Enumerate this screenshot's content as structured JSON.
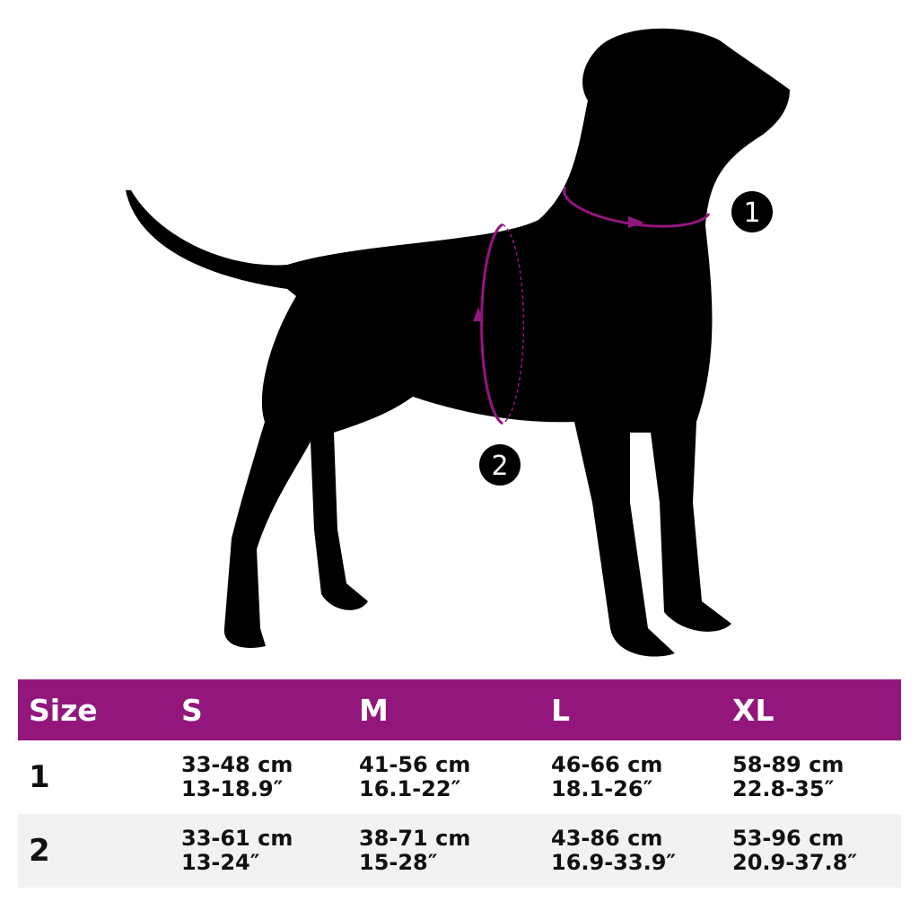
{
  "colors": {
    "accent": "#93167d",
    "silhouette": "#000000",
    "row_alt": "#f2f2f2"
  },
  "diagram": {
    "markers": [
      {
        "label": "1",
        "measures": "neck"
      },
      {
        "label": "2",
        "measures": "chest"
      }
    ]
  },
  "table": {
    "headers": [
      "Size",
      "S",
      "M",
      "L",
      "XL"
    ],
    "rows": [
      {
        "label": "1",
        "cells": [
          {
            "cm": "33-48 cm",
            "in": "13-18.9″"
          },
          {
            "cm": "41-56 cm",
            "in": "16.1-22″"
          },
          {
            "cm": "46-66 cm",
            "in": "18.1-26″"
          },
          {
            "cm": "58-89 cm",
            "in": "22.8-35″"
          }
        ]
      },
      {
        "label": "2",
        "cells": [
          {
            "cm": "33-61 cm",
            "in": "13-24″"
          },
          {
            "cm": "38-71 cm",
            "in": "15-28″"
          },
          {
            "cm": "43-86 cm",
            "in": "16.9-33.9″"
          },
          {
            "cm": "53-96 cm",
            "in": "20.9-37.8″"
          }
        ]
      }
    ]
  }
}
